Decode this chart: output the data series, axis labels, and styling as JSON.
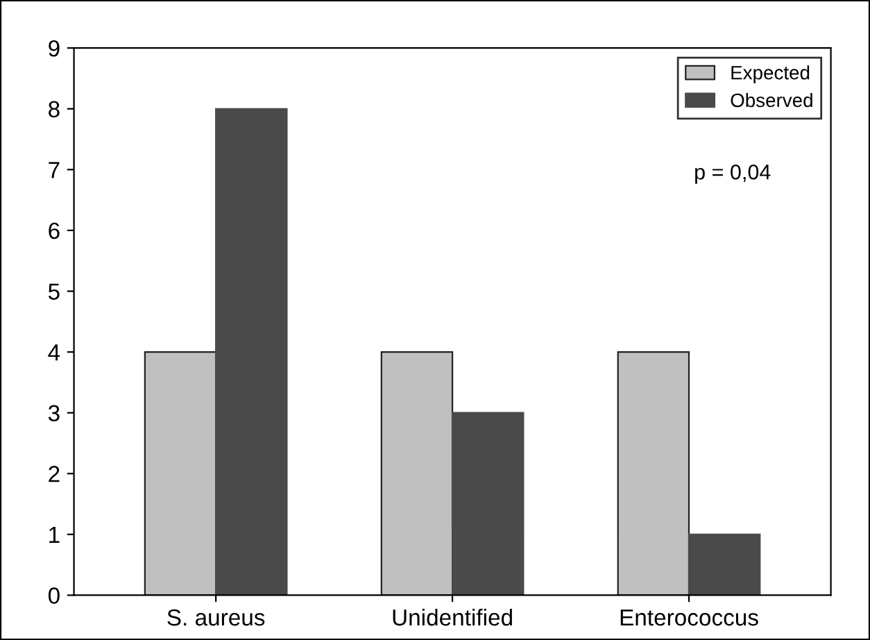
{
  "chart_data": {
    "type": "bar",
    "categories": [
      "S. aureus",
      "Unidentified",
      "Enterococcus"
    ],
    "series": [
      {
        "name": "Expected",
        "color": "#c0c0c0",
        "values": [
          4,
          4,
          4
        ]
      },
      {
        "name": "Observed",
        "color": "#4a4a4a",
        "values": [
          8,
          3,
          1
        ]
      }
    ],
    "ylim": [
      0,
      9
    ],
    "yticks": [
      0,
      1,
      2,
      3,
      4,
      5,
      6,
      7,
      8,
      9
    ],
    "grid": false,
    "legend": "top right",
    "annotations": [
      "p = 0,04"
    ]
  }
}
